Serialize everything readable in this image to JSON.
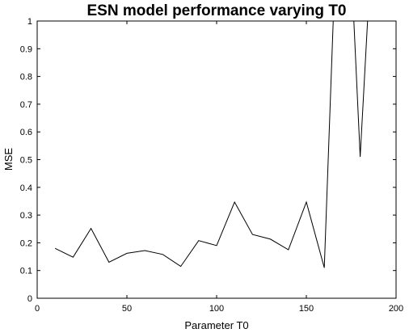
{
  "chart_data": {
    "type": "line",
    "title": "ESN model performance varying  T0",
    "xlabel": "Parameter  T0",
    "ylabel": "MSE",
    "xlim": [
      0,
      200
    ],
    "ylim": [
      0,
      1
    ],
    "x_ticks": [
      "0",
      "50",
      "100",
      "150",
      "200"
    ],
    "y_ticks": [
      "0",
      "0.1",
      "0.2",
      "0.3",
      "0.4",
      "0.5",
      "0.6",
      "0.7",
      "0.8",
      "0.9",
      "1"
    ],
    "grid": false,
    "series": [
      {
        "x": [
          10,
          20,
          30,
          40,
          50,
          60,
          70,
          80,
          90,
          100,
          110,
          120,
          130,
          140,
          150,
          160,
          170,
          180,
          190
        ],
        "y": [
          0.18,
          0.148,
          0.252,
          0.13,
          0.162,
          0.172,
          0.158,
          0.115,
          0.208,
          0.19,
          0.347,
          0.23,
          0.213,
          0.175,
          0.347,
          0.11,
          1.9,
          0.51,
          1.7
        ]
      }
    ],
    "colors": {
      "line": "#000000",
      "axis": "#000000",
      "background": "#ffffff"
    }
  }
}
